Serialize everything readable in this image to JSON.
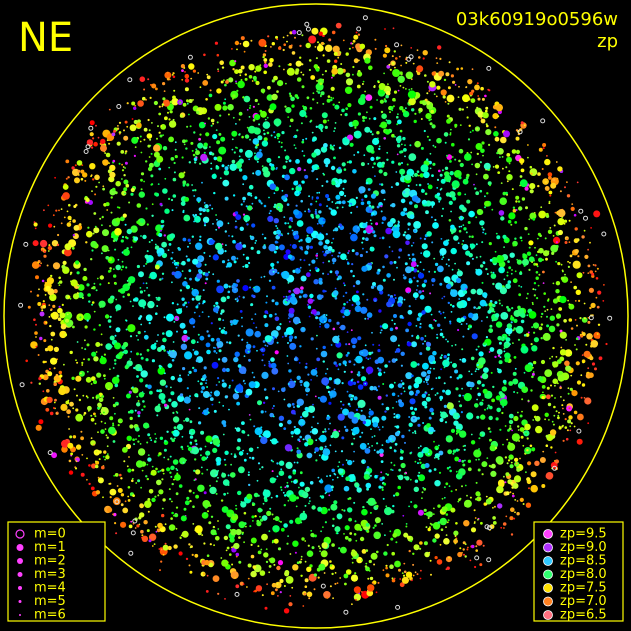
{
  "header": {
    "direction": "NE",
    "frame_id": "03k60919o0596w",
    "quantity": "zp"
  },
  "magnitude_legend": [
    "m=0",
    "m=1",
    "m=2",
    "m=3",
    "m=4",
    "m=5",
    "m=6"
  ],
  "zp_legend": [
    {
      "label": "zp=9.5",
      "color": "#ff40ff"
    },
    {
      "label": "zp=9.0",
      "color": "#b030ff"
    },
    {
      "label": "zp=8.5",
      "color": "#30c8ff"
    },
    {
      "label": "zp=8.0",
      "color": "#30ff70"
    },
    {
      "label": "zp=7.5",
      "color": "#ffe000"
    },
    {
      "label": "zp=7.0",
      "color": "#ff8020"
    },
    {
      "label": "zp=6.5",
      "color": "#ff7080"
    }
  ]
}
